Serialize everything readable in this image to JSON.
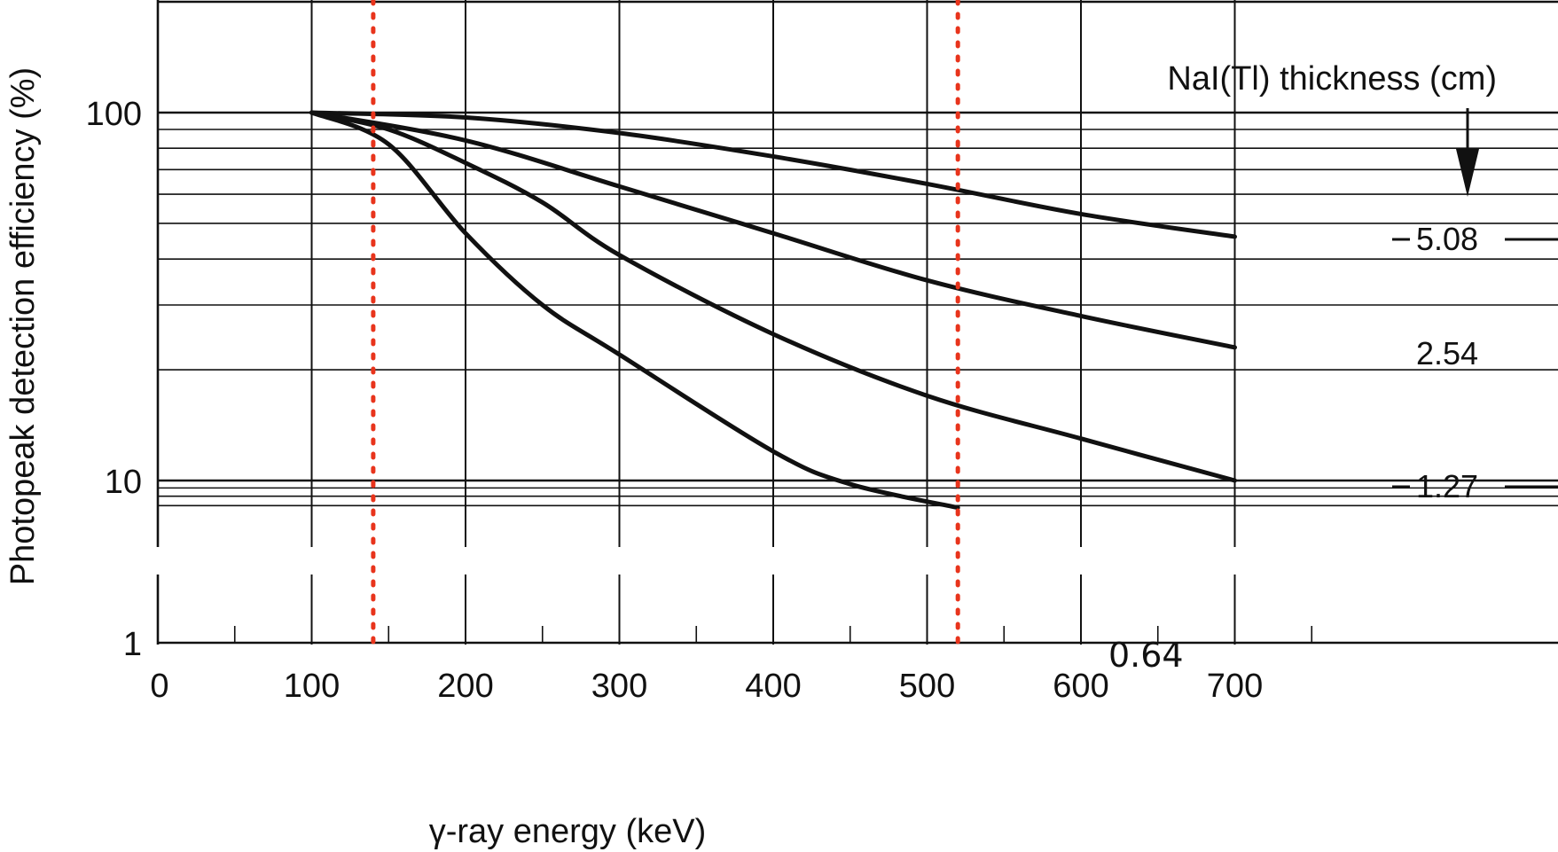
{
  "chart_data": {
    "type": "line",
    "title": "",
    "xlabel": "γ-ray energy (keV)",
    "ylabel": "Photopeak detection efficiency (%)",
    "x_scale": "linear",
    "y_scale": "log",
    "xlim": [
      0,
      790
    ],
    "ylim": [
      1,
      200
    ],
    "x_ticks": [
      "0",
      "100",
      "200",
      "300",
      "400",
      "500",
      "600",
      "700"
    ],
    "y_ticks": [
      "1",
      "10",
      "100"
    ],
    "grid": true,
    "legend_title": "NaI(Tl) thickness (cm)",
    "legend_placement": "top-right",
    "line_color": "#111111",
    "marker_line_color": "#e8341c",
    "series": [
      {
        "name": "5.08",
        "x": [
          100,
          200,
          300,
          400,
          500,
          600,
          700
        ],
        "y": [
          100,
          97,
          88,
          76,
          64,
          53,
          46
        ]
      },
      {
        "name": "2.54",
        "x": [
          100,
          200,
          300,
          400,
          500,
          600,
          700
        ],
        "y": [
          100,
          84,
          63,
          47,
          35,
          28,
          23
        ]
      },
      {
        "name": "1.27",
        "x": [
          100,
          150,
          200,
          250,
          300,
          400,
          500,
          600,
          700
        ],
        "y": [
          100,
          90,
          73,
          57,
          41,
          25,
          17,
          13,
          10
        ]
      },
      {
        "name": "0.64",
        "x": [
          100,
          150,
          200,
          250,
          300,
          400,
          450,
          520
        ],
        "y": [
          100,
          82,
          47,
          30,
          22,
          12,
          9.5,
          6.8
        ]
      }
    ],
    "vertical_markers": [
      {
        "x": 140,
        "style": "dotted",
        "color": "#e8341c"
      },
      {
        "x": 520,
        "style": "dotted",
        "color": "#e8341c"
      }
    ]
  }
}
